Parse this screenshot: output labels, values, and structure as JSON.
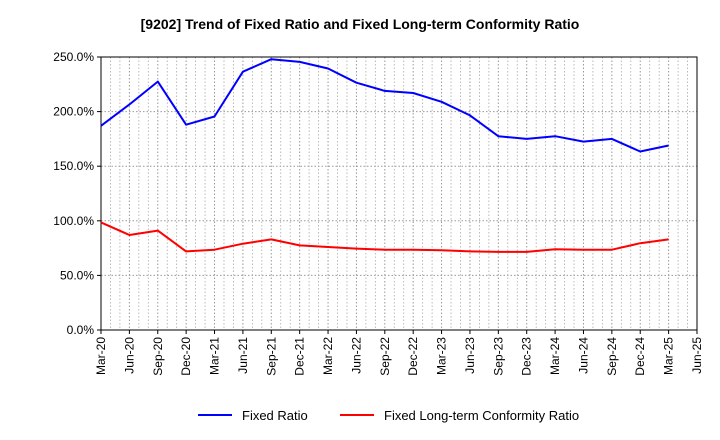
{
  "chart_data": {
    "type": "line",
    "title": "[9202]  Trend of Fixed Ratio and Fixed Long-term Conformity Ratio",
    "xlabel": "",
    "ylabel": "",
    "categories": [
      "Mar-20",
      "Jun-20",
      "Sep-20",
      "Dec-20",
      "Mar-21",
      "Jun-21",
      "Sep-21",
      "Dec-21",
      "Mar-22",
      "Jun-22",
      "Sep-22",
      "Dec-22",
      "Mar-23",
      "Jun-23",
      "Sep-23",
      "Dec-23",
      "Mar-24",
      "Jun-24",
      "Sep-24",
      "Dec-24",
      "Mar-25",
      "Jun-25"
    ],
    "x_tick_labels": [
      "Mar-20",
      "Jun-20",
      "Sep-20",
      "Dec-20",
      "Mar-21",
      "Jun-21",
      "Sep-21",
      "Dec-21",
      "Mar-22",
      "Jun-22",
      "Sep-22",
      "Dec-22",
      "Mar-23",
      "Jun-23",
      "Sep-23",
      "Dec-23",
      "Mar-24",
      "Jun-24",
      "Sep-24",
      "Dec-24",
      "Mar-25",
      "Jun-25"
    ],
    "y_ticks": [
      0,
      50,
      100,
      150,
      200,
      250
    ],
    "y_tick_labels": [
      "0.0%",
      "50.0%",
      "100.0%",
      "150.0%",
      "200.0%",
      "250.0%"
    ],
    "ylim": [
      0,
      250
    ],
    "grid": true,
    "legend_position": "bottom",
    "series": [
      {
        "name": "Fixed Ratio",
        "color": "#0000ff",
        "values": [
          187.0,
          206.5,
          227.5,
          188.0,
          195.5,
          236.5,
          248.0,
          245.5,
          239.5,
          226.5,
          219.0,
          217.0,
          209.0,
          196.5,
          177.5,
          175.0,
          177.5,
          172.5,
          175.0,
          163.5,
          169.0,
          null
        ]
      },
      {
        "name": "Fixed Long-term Conformity Ratio",
        "color": "#ff0000",
        "values": [
          98.5,
          87.0,
          91.0,
          72.0,
          73.5,
          79.0,
          83.0,
          77.5,
          76.0,
          74.5,
          73.5,
          73.5,
          73.0,
          72.0,
          71.5,
          71.5,
          74.0,
          73.5,
          73.5,
          79.5,
          83.0,
          null
        ]
      }
    ]
  }
}
